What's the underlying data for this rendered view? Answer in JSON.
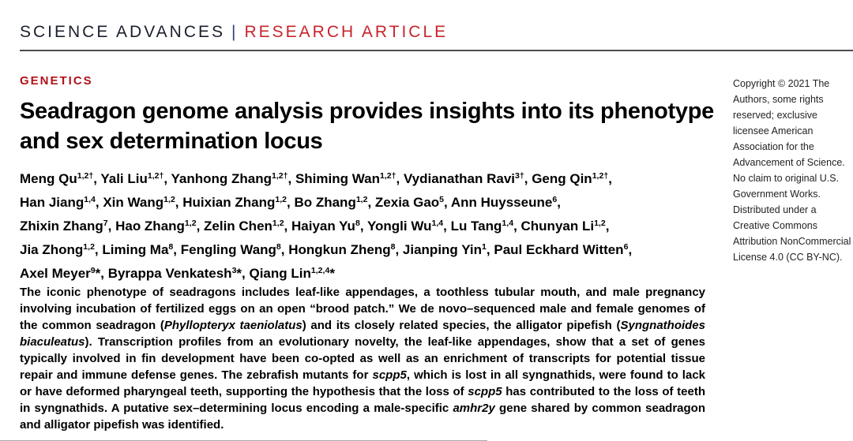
{
  "masthead": {
    "journal": "SCIENCE ADVANCES",
    "separator": "|",
    "article_type": "RESEARCH ARTICLE"
  },
  "section_label": "GENETICS",
  "title": "Seadragon genome analysis provides insights into its phenotype and sex determination locus",
  "authors": {
    "lines": [
      [
        {
          "t": "Meng Qu"
        },
        {
          "s": "1,2†"
        },
        {
          "t": ", Yali Liu"
        },
        {
          "s": "1,2†"
        },
        {
          "t": ", Yanhong Zhang"
        },
        {
          "s": "1,2†"
        },
        {
          "t": ", Shiming Wan"
        },
        {
          "s": "1,2†"
        },
        {
          "t": ", Vydianathan Ravi"
        },
        {
          "s": "3†"
        },
        {
          "t": ", Geng Qin"
        },
        {
          "s": "1,2†"
        },
        {
          "t": ","
        }
      ],
      [
        {
          "t": "Han Jiang"
        },
        {
          "s": "1,4"
        },
        {
          "t": ", Xin Wang"
        },
        {
          "s": "1,2"
        },
        {
          "t": ", Huixian Zhang"
        },
        {
          "s": "1,2"
        },
        {
          "t": ", Bo Zhang"
        },
        {
          "s": "1,2"
        },
        {
          "t": ", Zexia Gao"
        },
        {
          "s": "5"
        },
        {
          "t": ", Ann Huysseune"
        },
        {
          "s": "6"
        },
        {
          "t": ","
        }
      ],
      [
        {
          "t": "Zhixin Zhang"
        },
        {
          "s": "7"
        },
        {
          "t": ", Hao Zhang"
        },
        {
          "s": "1,2"
        },
        {
          "t": ", Zelin Chen"
        },
        {
          "s": "1,2"
        },
        {
          "t": ", Haiyan Yu"
        },
        {
          "s": "8"
        },
        {
          "t": ", Yongli Wu"
        },
        {
          "s": "1,4"
        },
        {
          "t": ", Lu Tang"
        },
        {
          "s": "1,4"
        },
        {
          "t": ", Chunyan Li"
        },
        {
          "s": "1,2"
        },
        {
          "t": ","
        }
      ],
      [
        {
          "t": "Jia Zhong"
        },
        {
          "s": "1,2"
        },
        {
          "t": ", Liming Ma"
        },
        {
          "s": "8"
        },
        {
          "t": ", Fengling Wang"
        },
        {
          "s": "8"
        },
        {
          "t": ", Hongkun Zheng"
        },
        {
          "s": "8"
        },
        {
          "t": ", Jianping Yin"
        },
        {
          "s": "1"
        },
        {
          "t": ", Paul Eckhard Witten"
        },
        {
          "s": "6"
        },
        {
          "t": ","
        }
      ],
      [
        {
          "t": "Axel Meyer"
        },
        {
          "s": "9"
        },
        {
          "t": "*, Byrappa Venkatesh"
        },
        {
          "s": "3"
        },
        {
          "t": "*, Qiang Lin"
        },
        {
          "s": "1,2,4"
        },
        {
          "t": "*"
        }
      ]
    ]
  },
  "abstract": {
    "segments": [
      {
        "t": "The iconic phenotype of seadragons includes leaf-like appendages, a toothless tubular mouth, and male pregnancy involving incubation of fertilized eggs on an open “brood patch.” We de novo–sequenced male and female genomes of the common seadragon ("
      },
      {
        "t": "Phyllopteryx taeniolatus",
        "i": true
      },
      {
        "t": ") and its closely related species, the alligator pipefish ("
      },
      {
        "t": "Syngnathoides biaculeatus",
        "i": true
      },
      {
        "t": "). Transcription profiles from an evolutionary novelty, the leaf-like appendages, show that a set of genes typically involved in fin development have been co-opted as well as an enrichment of transcripts for potential tissue repair and immune defense genes. The zebrafish mutants for "
      },
      {
        "t": "scpp5",
        "i": true
      },
      {
        "t": ", which is lost in all syngnathids, were found to lack or have deformed pharyngeal teeth, supporting the hypothesis that the loss of "
      },
      {
        "t": "scpp5",
        "i": true
      },
      {
        "t": " has contributed to the loss of teeth in syngnathids. A putative sex–determining locus encoding a male-specific "
      },
      {
        "t": "amhr2y",
        "i": true
      },
      {
        "t": " gene shared by common seadragon and alligator pipefish was identified."
      }
    ]
  },
  "copyright_sidebar": {
    "text": "Copyright © 2021 The Authors, some rights reserved; exclusive licensee American Association for the Advancement of Science. No claim to original U.S. Government Works. Distributed under a Creative Commons Attribution NonCommercial License 4.0 (CC BY-NC)."
  },
  "colors": {
    "brand-red": "#c8242d",
    "section-red": "#b11218",
    "journal-ink": "#1b1f2e",
    "pipe-blue": "#33427a",
    "rule-gray": "#4d4d4f"
  }
}
